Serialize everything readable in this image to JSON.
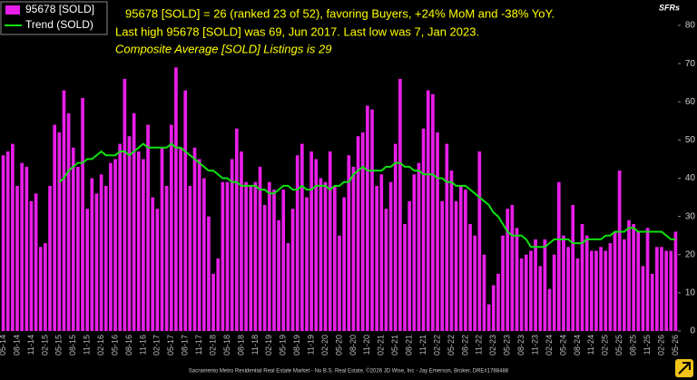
{
  "chart_data": {
    "type": "bar",
    "categories": [
      "05-14",
      null,
      null,
      "08-14",
      null,
      null,
      "11-14",
      null,
      null,
      "02-15",
      null,
      null,
      "05-15",
      null,
      null,
      "08-15",
      null,
      null,
      "11-15",
      null,
      null,
      "02-16",
      null,
      null,
      "05-16",
      null,
      null,
      "08-16",
      null,
      null,
      "11-16",
      null,
      null,
      "02-17",
      null,
      null,
      "05-17",
      null,
      null,
      "08-17",
      null,
      null,
      "11-17",
      null,
      null,
      "02-18",
      null,
      null,
      "05-18",
      null,
      null,
      "08-18",
      null,
      null,
      "11-18",
      null,
      null,
      "02-19",
      null,
      null,
      "05-19",
      null,
      null,
      "08-19",
      null,
      null,
      "11-19",
      null,
      null,
      "02-20",
      null,
      null,
      "05-20",
      null,
      null,
      "08-20",
      null,
      null,
      "11-20",
      null,
      null,
      "02-21",
      null,
      null,
      "05-21",
      null,
      null,
      "08-21",
      null,
      null,
      "11-21",
      null,
      null,
      "02-22",
      null,
      null,
      "05-22",
      null,
      null,
      "08-22",
      null,
      null,
      "11-22",
      null,
      null,
      "02-23",
      null,
      null,
      "05-23",
      null,
      null,
      "08-23",
      null,
      null,
      "11-23",
      null,
      null,
      "02-24",
      null,
      null,
      "05-24",
      null,
      null,
      "08-24",
      null,
      null,
      "11-24",
      null,
      null,
      "02-25",
      null,
      null,
      "05-25",
      null,
      null,
      "08-25",
      null,
      null,
      "11-25",
      null,
      null,
      "02-26",
      null,
      null,
      "05-26"
    ],
    "series": [
      {
        "name": "95678 [SOLD]",
        "color": "#e81ee8",
        "values": [
          46,
          47,
          49,
          38,
          44,
          43,
          34,
          36,
          22,
          23,
          38,
          54,
          52,
          63,
          57,
          48,
          43,
          61,
          32,
          40,
          36,
          41,
          38,
          44,
          45,
          49,
          66,
          51,
          57,
          47,
          45,
          54,
          35,
          32,
          48,
          38,
          54,
          69,
          48,
          63,
          38,
          48,
          45,
          40,
          30,
          15,
          19,
          39,
          39,
          45,
          53,
          47,
          39,
          38,
          39,
          43,
          33,
          39,
          37,
          29,
          37,
          23,
          32,
          46,
          49,
          35,
          47,
          45,
          40,
          39,
          47,
          38,
          25,
          35,
          46,
          43,
          51,
          52,
          59,
          58,
          38,
          41,
          32,
          39,
          49,
          66,
          28,
          34,
          41,
          44,
          53,
          63,
          62,
          52,
          34,
          49,
          42,
          34,
          38,
          37,
          28,
          25,
          47,
          20,
          7,
          12,
          15,
          25,
          32,
          33,
          27,
          19,
          20,
          21,
          24,
          17,
          24,
          11,
          20,
          39,
          25,
          22,
          33,
          19,
          28,
          25,
          21,
          21,
          22,
          21,
          23,
          26,
          42,
          24,
          29,
          28,
          26,
          17,
          27,
          15,
          22,
          22,
          21,
          21,
          26
        ]
      },
      {
        "name": "Trend (SOLD)",
        "type": "line",
        "color": "#10e010",
        "values": [
          null,
          null,
          null,
          null,
          null,
          null,
          null,
          null,
          null,
          null,
          null,
          null,
          39,
          40,
          42,
          43,
          44,
          44,
          45,
          45,
          46,
          47,
          46,
          46,
          46,
          47,
          47,
          46,
          47,
          48,
          49,
          48,
          48,
          48,
          48,
          48,
          49,
          48,
          48,
          47,
          46,
          45,
          44,
          43,
          42,
          42,
          41,
          40,
          40,
          39,
          39,
          38,
          38,
          38,
          38,
          37,
          37,
          36,
          36,
          37,
          38,
          38,
          37,
          37,
          38,
          37,
          37,
          38,
          38,
          38,
          37,
          38,
          38,
          39,
          39,
          41,
          42,
          43,
          42,
          42,
          42,
          42,
          43,
          43,
          44,
          44,
          43,
          43,
          42,
          42,
          41,
          41,
          41,
          40,
          40,
          39,
          39,
          38,
          38,
          38,
          37,
          36,
          35,
          34,
          33,
          31,
          30,
          28,
          26,
          25,
          25,
          25,
          24,
          22,
          22,
          22,
          22,
          23,
          24,
          24,
          24,
          24,
          23,
          23,
          23,
          24,
          24,
          24,
          24,
          25,
          25,
          26,
          26,
          26,
          27,
          27,
          26,
          26,
          26,
          26,
          26,
          26,
          25,
          24,
          24
        ]
      }
    ],
    "ylim": [
      0,
      80
    ],
    "yticks": [
      0,
      10,
      20,
      30,
      40,
      50,
      60,
      70,
      80
    ],
    "y_axis_label": "SFRs",
    "grid": false,
    "annotations": [
      "95678 [SOLD] = 26 (ranked 23 of 52), favoring Buyers, +24% MoM and -38% YoY.",
      "Last high 95678 [SOLD] was 69, Jun 2017. Last low was 7, Jan 2023.",
      "Composite Average [SOLD] Listings is 29"
    ],
    "footer": "Sacramento Metro Residential Real Estate Market - No B.S. Real Estate, ©2026 JD Wise, Inc - Jay Emerson, Broker, DRE#1788488"
  }
}
